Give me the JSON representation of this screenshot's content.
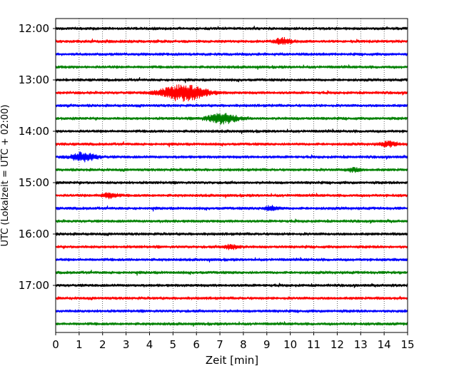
{
  "chart_data": {
    "type": "line",
    "subtype": "seismogram-helicorder",
    "xlabel": "Zeit  [min]",
    "ylabel": "UTC (Lokalzeit = UTC + 02:00)",
    "xlim": [
      0,
      15
    ],
    "x_ticks": [
      0,
      1,
      2,
      3,
      4,
      5,
      6,
      7,
      8,
      9,
      10,
      11,
      12,
      13,
      14,
      15
    ],
    "x_tick_labels": [
      "0",
      "1",
      "2",
      "3",
      "4",
      "5",
      "6",
      "7",
      "8",
      "9",
      "10",
      "11",
      "12",
      "13",
      "14",
      "15"
    ],
    "y_tick_labels": [
      "12:00",
      "13:00",
      "14:00",
      "15:00",
      "16:00",
      "17:00"
    ],
    "y_tick_trace_index": [
      0,
      4,
      8,
      12,
      16,
      20
    ],
    "minutes_per_trace": 15,
    "grid": "vertical dotted at each minute",
    "legend": "none",
    "trace_colors": [
      "#000000",
      "#ff0000",
      "#0000ff",
      "#008000"
    ],
    "events": [
      {
        "trace": 1,
        "minute": 9.7,
        "amplitude": 0.5
      },
      {
        "trace": 5,
        "minute": 5.45,
        "amplitude": 1.6
      },
      {
        "trace": 7,
        "minute": 7.1,
        "amplitude": 1.0
      },
      {
        "trace": 9,
        "minute": 14.2,
        "amplitude": 0.45
      },
      {
        "trace": 10,
        "minute": 1.2,
        "amplitude": 0.8
      },
      {
        "trace": 11,
        "minute": 12.7,
        "amplitude": 0.35
      },
      {
        "trace": 13,
        "minute": 2.3,
        "amplitude": 0.45
      },
      {
        "trace": 14,
        "minute": 9.2,
        "amplitude": 0.4
      },
      {
        "trace": 17,
        "minute": 7.5,
        "amplitude": 0.4
      }
    ],
    "traces": [
      {
        "start": "12:00",
        "color": "#000000"
      },
      {
        "start": "12:15",
        "color": "#ff0000"
      },
      {
        "start": "12:30",
        "color": "#0000ff"
      },
      {
        "start": "12:45",
        "color": "#008000"
      },
      {
        "start": "13:00",
        "color": "#000000"
      },
      {
        "start": "13:15",
        "color": "#ff0000"
      },
      {
        "start": "13:30",
        "color": "#0000ff"
      },
      {
        "start": "13:45",
        "color": "#008000"
      },
      {
        "start": "14:00",
        "color": "#000000"
      },
      {
        "start": "14:15",
        "color": "#ff0000"
      },
      {
        "start": "14:30",
        "color": "#0000ff"
      },
      {
        "start": "14:45",
        "color": "#008000"
      },
      {
        "start": "15:00",
        "color": "#000000"
      },
      {
        "start": "15:15",
        "color": "#ff0000"
      },
      {
        "start": "15:30",
        "color": "#0000ff"
      },
      {
        "start": "15:45",
        "color": "#008000"
      },
      {
        "start": "16:00",
        "color": "#000000"
      },
      {
        "start": "16:15",
        "color": "#ff0000"
      },
      {
        "start": "16:30",
        "color": "#0000ff"
      },
      {
        "start": "16:45",
        "color": "#008000"
      },
      {
        "start": "17:00",
        "color": "#000000"
      },
      {
        "start": "17:15",
        "color": "#ff0000"
      },
      {
        "start": "17:30",
        "color": "#0000ff"
      },
      {
        "start": "17:45",
        "color": "#008000"
      }
    ]
  }
}
